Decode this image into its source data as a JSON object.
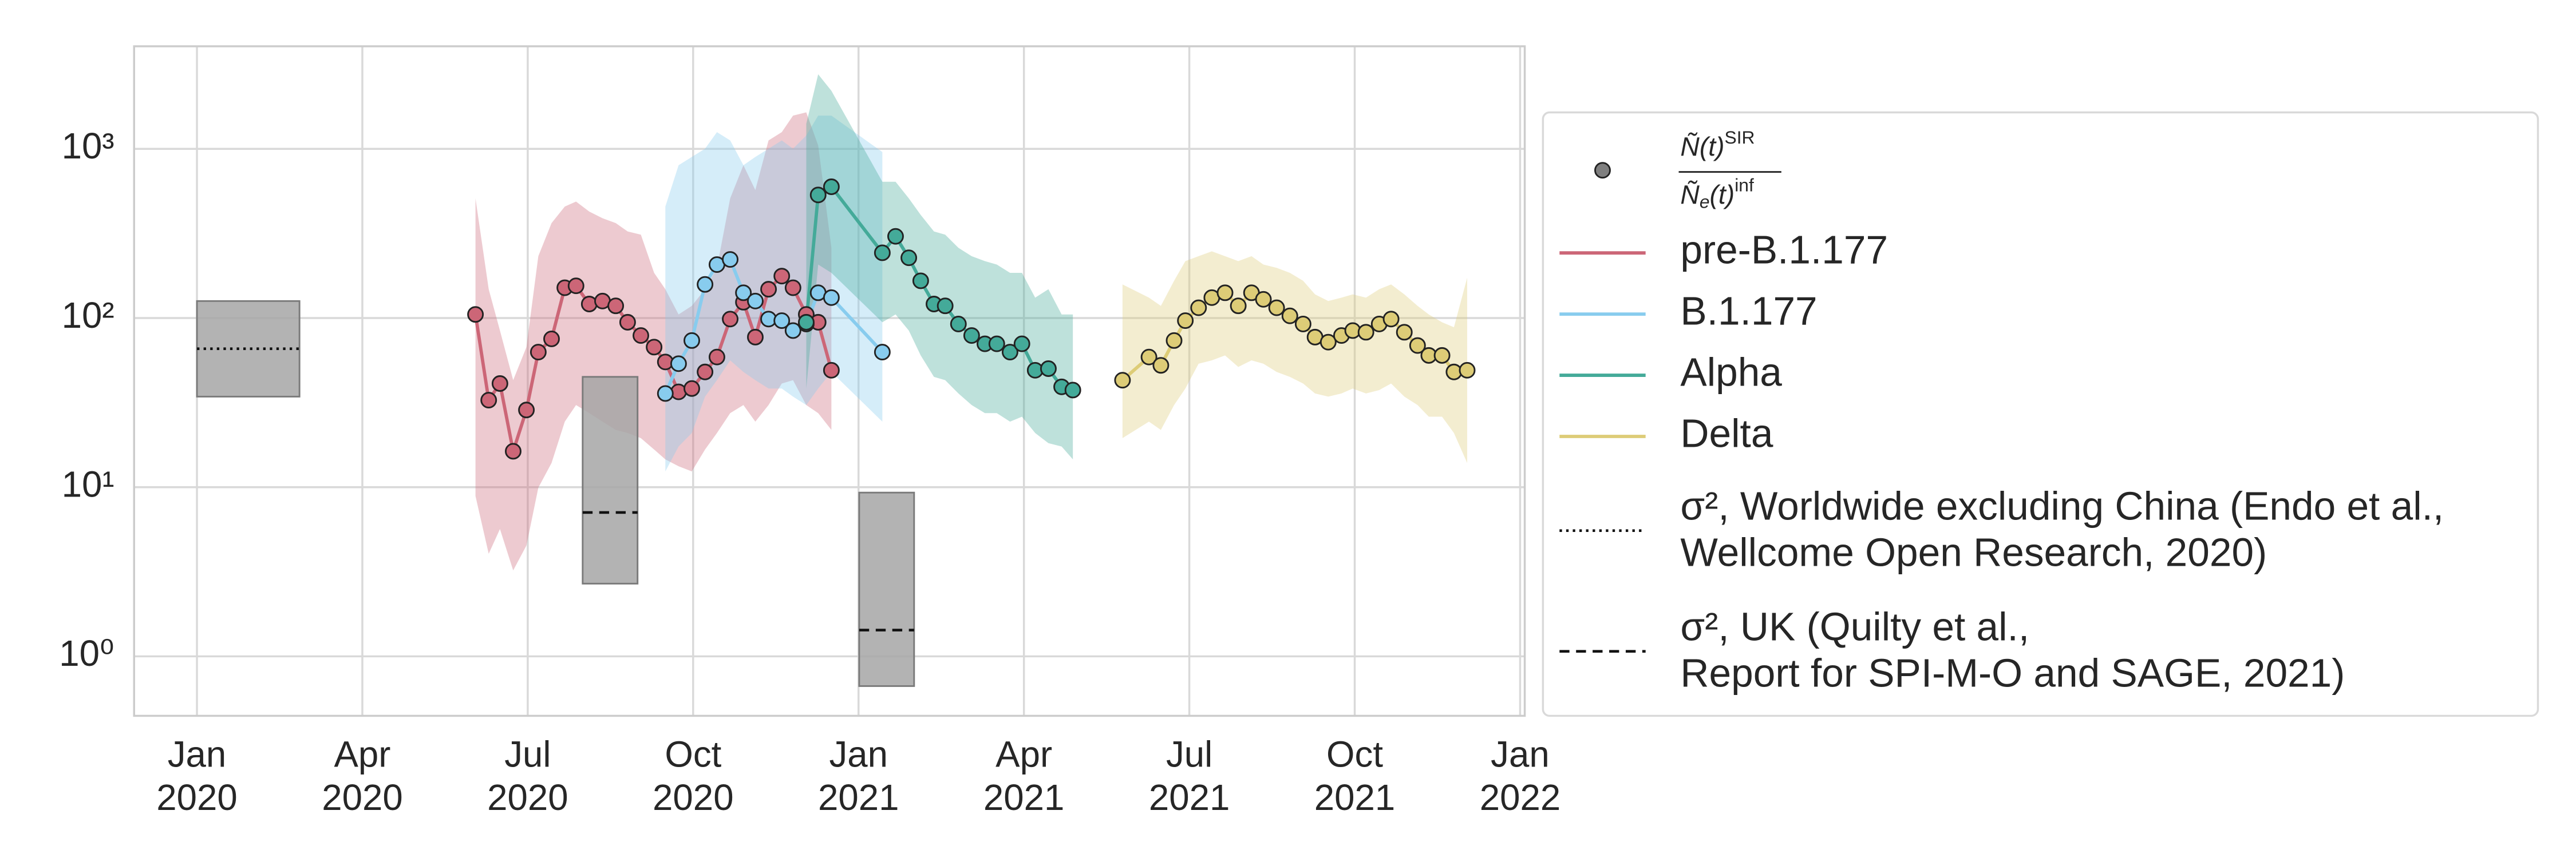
{
  "chart_data": {
    "type": "line",
    "yscale": "log",
    "grid": true,
    "legend": "right",
    "xlim": [
      2019.905,
      2022.007
    ],
    "ylim": [
      0.445,
      4040
    ],
    "xticks": [
      {
        "value": 2020.0,
        "label": "Jan 2020"
      },
      {
        "value": 2020.25,
        "label": "Apr 2020"
      },
      {
        "value": 2020.5,
        "label": "Jul 2020"
      },
      {
        "value": 2020.75,
        "label": "Oct 2020"
      },
      {
        "value": 2021.0,
        "label": "Jan 2021"
      },
      {
        "value": 2021.25,
        "label": "Apr 2021"
      },
      {
        "value": 2021.5,
        "label": "Jul 2021"
      },
      {
        "value": 2021.75,
        "label": "Oct 2021"
      },
      {
        "value": 2022.0,
        "label": "Jan 2022"
      }
    ],
    "yticks": [
      {
        "value": 1,
        "label": "10⁰"
      },
      {
        "value": 10,
        "label": "10¹"
      },
      {
        "value": 100,
        "label": "10²"
      },
      {
        "value": 1000,
        "label": "10³"
      }
    ],
    "points_legend": {
      "color": "#7f7f7f",
      "numerator": "Ñ(t)",
      "numerator_sup": "SIR",
      "denominator": "Ñ",
      "denominator_sub": "e",
      "denominator_rest": "(t)",
      "denominator_sup": "inf"
    },
    "series": [
      {
        "name": "pre-B.1.177",
        "color": "#cc6677",
        "x": [
          2020.421,
          2020.441,
          2020.458,
          2020.478,
          2020.498,
          2020.516,
          2020.536,
          2020.556,
          2020.573,
          2020.593,
          2020.613,
          2020.633,
          2020.651,
          2020.671,
          2020.691,
          2020.708,
          2020.728,
          2020.748,
          2020.768,
          2020.786,
          2020.806,
          2020.826,
          2020.844,
          2020.864,
          2020.884,
          2020.901,
          2020.921,
          2020.939,
          2020.959
        ],
        "values": [
          105,
          32.7,
          41.0,
          16.3,
          28.6,
          62.9,
          75.3,
          151,
          155,
          121,
          126,
          118,
          94.4,
          78.8,
          67.3,
          55.0,
          36.6,
          38.3,
          48.0,
          58.8,
          98.6,
          124,
          77.1,
          148,
          177,
          151,
          105,
          94.4,
          49.1
        ],
        "upper": [
          510,
          148,
          84.3,
          42.9,
          67.3,
          232,
          364,
          456,
          488,
          426,
          389,
          364,
          325,
          311,
          185,
          148,
          105,
          118,
          148,
          198,
          510,
          800,
          571,
          1122,
          1256,
          1572,
          1644,
          1049,
          260
        ],
        "lower": [
          8.87,
          4.04,
          5.66,
          3.22,
          4.52,
          9.93,
          13.9,
          24.4,
          30.6,
          27.4,
          24.4,
          21.8,
          20.9,
          19.5,
          16.7,
          14.6,
          13.3,
          12.4,
          16.7,
          20.9,
          27.4,
          30.6,
          24.4,
          30.6,
          41.0,
          42.9,
          30.6,
          27.4,
          21.8
        ]
      },
      {
        "name": "B.1.177",
        "color": "#88ccee",
        "x": [
          2020.708,
          2020.728,
          2020.748,
          2020.768,
          2020.786,
          2020.806,
          2020.826,
          2020.844,
          2020.864,
          2020.884,
          2020.901,
          2020.921,
          2020.939,
          2020.959,
          2021.036
        ],
        "values": [
          35.8,
          53.7,
          73.6,
          158,
          207,
          222,
          141,
          126,
          98.6,
          96.5,
          84.3,
          92.2,
          141,
          132,
          62.9
        ],
        "upper": [
          456,
          800,
          896,
          1002,
          1256,
          1122,
          800,
          896,
          1002,
          1122,
          1002,
          1200,
          1572,
          1572,
          958
        ],
        "lower": [
          12.4,
          17.4,
          20.9,
          34.3,
          42.9,
          56.2,
          48.0,
          42.9,
          38.3,
          38.3,
          34.3,
          30.6,
          38.3,
          48.0,
          24.4
        ]
      },
      {
        "name": "Alpha",
        "color": "#44aa99",
        "x": [
          2020.921,
          2020.939,
          2020.959,
          2021.036,
          2021.056,
          2021.076,
          2021.094,
          2021.114,
          2021.131,
          2021.151,
          2021.171,
          2021.191,
          2021.209,
          2021.229,
          2021.247,
          2021.267,
          2021.287,
          2021.307,
          2021.324
        ],
        "values": [
          94.4,
          534,
          597,
          243,
          304,
          227,
          166,
          121,
          118,
          92.2,
          78.8,
          70.4,
          70.4,
          62.9,
          70.4,
          49.1,
          50.2,
          39.2,
          37.5
        ],
        "upper": [
          1406,
          2760,
          2203,
          639,
          639,
          510,
          407,
          325,
          311,
          260,
          232,
          217,
          207,
          185,
          185,
          132,
          148,
          105,
          105
        ],
        "lower": [
          38.3,
          207,
          185,
          94.4,
          105,
          84.3,
          60.1,
          44.9,
          42.9,
          35.8,
          30.6,
          27.4,
          27.4,
          24.4,
          26.1,
          20.9,
          18.2,
          17.4,
          14.6
        ]
      },
      {
        "name": "Delta",
        "color": "#ddcc77",
        "x": [
          2021.399,
          2021.439,
          2021.457,
          2021.477,
          2021.494,
          2021.514,
          2021.534,
          2021.554,
          2021.574,
          2021.594,
          2021.612,
          2021.632,
          2021.652,
          2021.672,
          2021.69,
          2021.71,
          2021.73,
          2021.747,
          2021.767,
          2021.787,
          2021.805,
          2021.825,
          2021.845,
          2021.862,
          2021.882,
          2021.9,
          2021.92
        ],
        "values": [
          42.9,
          58.8,
          52.5,
          73.6,
          96.5,
          115,
          132,
          141,
          118,
          141,
          129,
          115,
          103,
          92.2,
          77.1,
          72.0,
          78.8,
          84.3,
          82.4,
          92.2,
          98.6,
          82.4,
          68.8,
          60.1,
          60.1,
          48.0,
          49.1
        ],
        "upper": [
          158,
          132,
          118,
          166,
          217,
          232,
          248,
          232,
          217,
          232,
          207,
          198,
          185,
          166,
          138,
          126,
          132,
          138,
          132,
          148,
          158,
          138,
          118,
          105,
          94.4,
          88.2,
          173
        ],
        "lower": [
          19.5,
          24.4,
          21.8,
          30.6,
          38.3,
          53.7,
          56.2,
          60.1,
          51.4,
          56.2,
          53.7,
          48.0,
          44.9,
          41.0,
          35.8,
          34.3,
          35.8,
          38.3,
          35.8,
          37.5,
          41.0,
          34.3,
          30.6,
          26.1,
          26.1,
          20.9,
          13.9
        ]
      }
    ],
    "references": [
      {
        "label": [
          "σ², Worldwide excluding China (Endo et al.,",
          "Wellcome Open Research, 2020)"
        ],
        "style": "dotted",
        "color": "#a6a6a6",
        "boxes": [
          {
            "x": [
              2020.0,
              2020.155
            ],
            "low": 34.3,
            "high": 126,
            "value": 65.8
          }
        ]
      },
      {
        "label": [
          "σ², UK (Quilty et al.,",
          "Report for SPI-M-O and SAGE, 2021)"
        ],
        "style": "dashed",
        "color": "#a6a6a6",
        "boxes": [
          {
            "x": [
              2020.583,
              2020.666
            ],
            "low": 2.69,
            "high": 44.9,
            "value": 7.09
          },
          {
            "x": [
              2021.001,
              2021.084
            ],
            "low": 0.667,
            "high": 9.29,
            "value": 1.43
          }
        ]
      }
    ]
  }
}
